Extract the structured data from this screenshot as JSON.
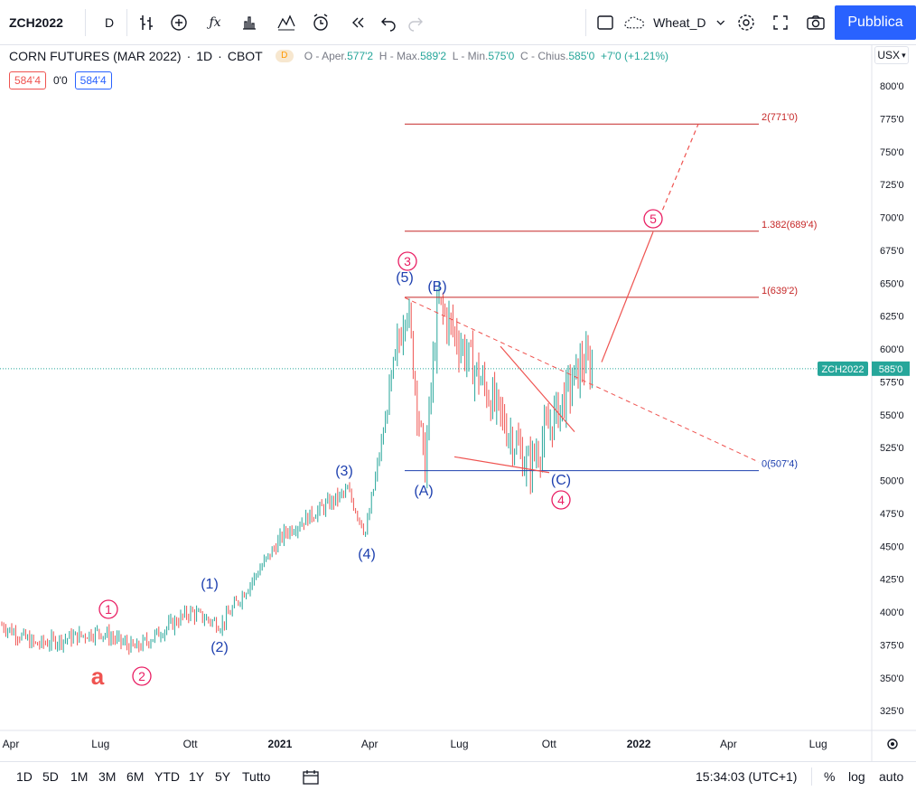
{
  "toolbar": {
    "symbol": "ZCH2022",
    "interval": "D",
    "indicators_icon": "fx-icon",
    "layout_name": "Wheat_D",
    "publish_label": "Pubblica"
  },
  "legend": {
    "title": "CORN FUTURES (MAR 2022)",
    "interval": "1D",
    "exchange": "CBOT",
    "delay_badge": "D",
    "open_label": "O - Aper.",
    "open_value": "577'2",
    "high_label": "H - Max.",
    "high_value": "589'2",
    "low_label": "L - Min.",
    "low_value": "575'0",
    "close_label": "C - Chius.",
    "close_value": "585'0",
    "change": "+7'0 (+1.21%)",
    "bid": "584'4",
    "spread": "0'0",
    "ask": "584'4"
  },
  "price_scale": {
    "currency": "USX",
    "labels": [
      "800'0",
      "775'0",
      "750'0",
      "725'0",
      "700'0",
      "675'0",
      "650'0",
      "625'0",
      "600'0",
      "575'0",
      "550'0",
      "525'0",
      "500'0",
      "475'0",
      "450'0",
      "425'0",
      "400'0",
      "375'0",
      "350'0",
      "325'0"
    ],
    "last_symbol": "ZCH2022",
    "last_price": "585'0"
  },
  "time_scale": {
    "labels": [
      "Apr",
      "Lug",
      "Ott",
      "2021",
      "Apr",
      "Lug",
      "Ott",
      "2022",
      "Apr",
      "Lug"
    ]
  },
  "annotations": {
    "fib": [
      "2(771'0)",
      "1.382(689'4)",
      "1(639'2)",
      "0(507'4)"
    ],
    "waves_blue": [
      "(1)",
      "(2)",
      "(3)",
      "(4)",
      "(5)",
      "(A)",
      "(B)",
      "(C)"
    ],
    "waves_red": [
      "1",
      "2",
      "3",
      "4",
      "5"
    ],
    "letter": "a"
  },
  "bottom": {
    "ranges": [
      "1D",
      "5D",
      "1M",
      "3M",
      "6M",
      "YTD",
      "1Y",
      "5Y",
      "Tutto"
    ],
    "time": "15:34:03 (UTC+1)",
    "percent": "%",
    "log": "log",
    "auto": "auto"
  },
  "colors": {
    "up": "#26a69a",
    "down": "#ef5350",
    "fib_line": "#c62828",
    "wave_blue": "#1e40af",
    "wave_red": "#e91e63",
    "accent": "#2962ff"
  },
  "chart_data": {
    "type": "candlestick",
    "symbol": "ZCH2022",
    "y_range": [
      310,
      810
    ],
    "x_range": [
      "2020-04",
      "2022-08"
    ],
    "approx_path": [
      {
        "date": "2020-04",
        "price": 390
      },
      {
        "date": "2020-05",
        "price": 375
      },
      {
        "date": "2020-07",
        "price": 385
      },
      {
        "date": "2020-08",
        "price": 372
      },
      {
        "date": "2020-10",
        "price": 400
      },
      {
        "date": "2020-10",
        "price": 390
      },
      {
        "date": "2021-01",
        "price": 460
      },
      {
        "date": "2021-03",
        "price": 492
      },
      {
        "date": "2021-03",
        "price": 460
      },
      {
        "date": "2021-05",
        "price": 639
      },
      {
        "date": "2021-05",
        "price": 507
      },
      {
        "date": "2021-06",
        "price": 635
      },
      {
        "date": "2021-09",
        "price": 510
      },
      {
        "date": "2021-10",
        "price": 590
      },
      {
        "date": "2021-11",
        "price": 585
      }
    ],
    "fib_levels": [
      771.0,
      689.5,
      639.25,
      507.5
    ],
    "last": 585.0
  }
}
